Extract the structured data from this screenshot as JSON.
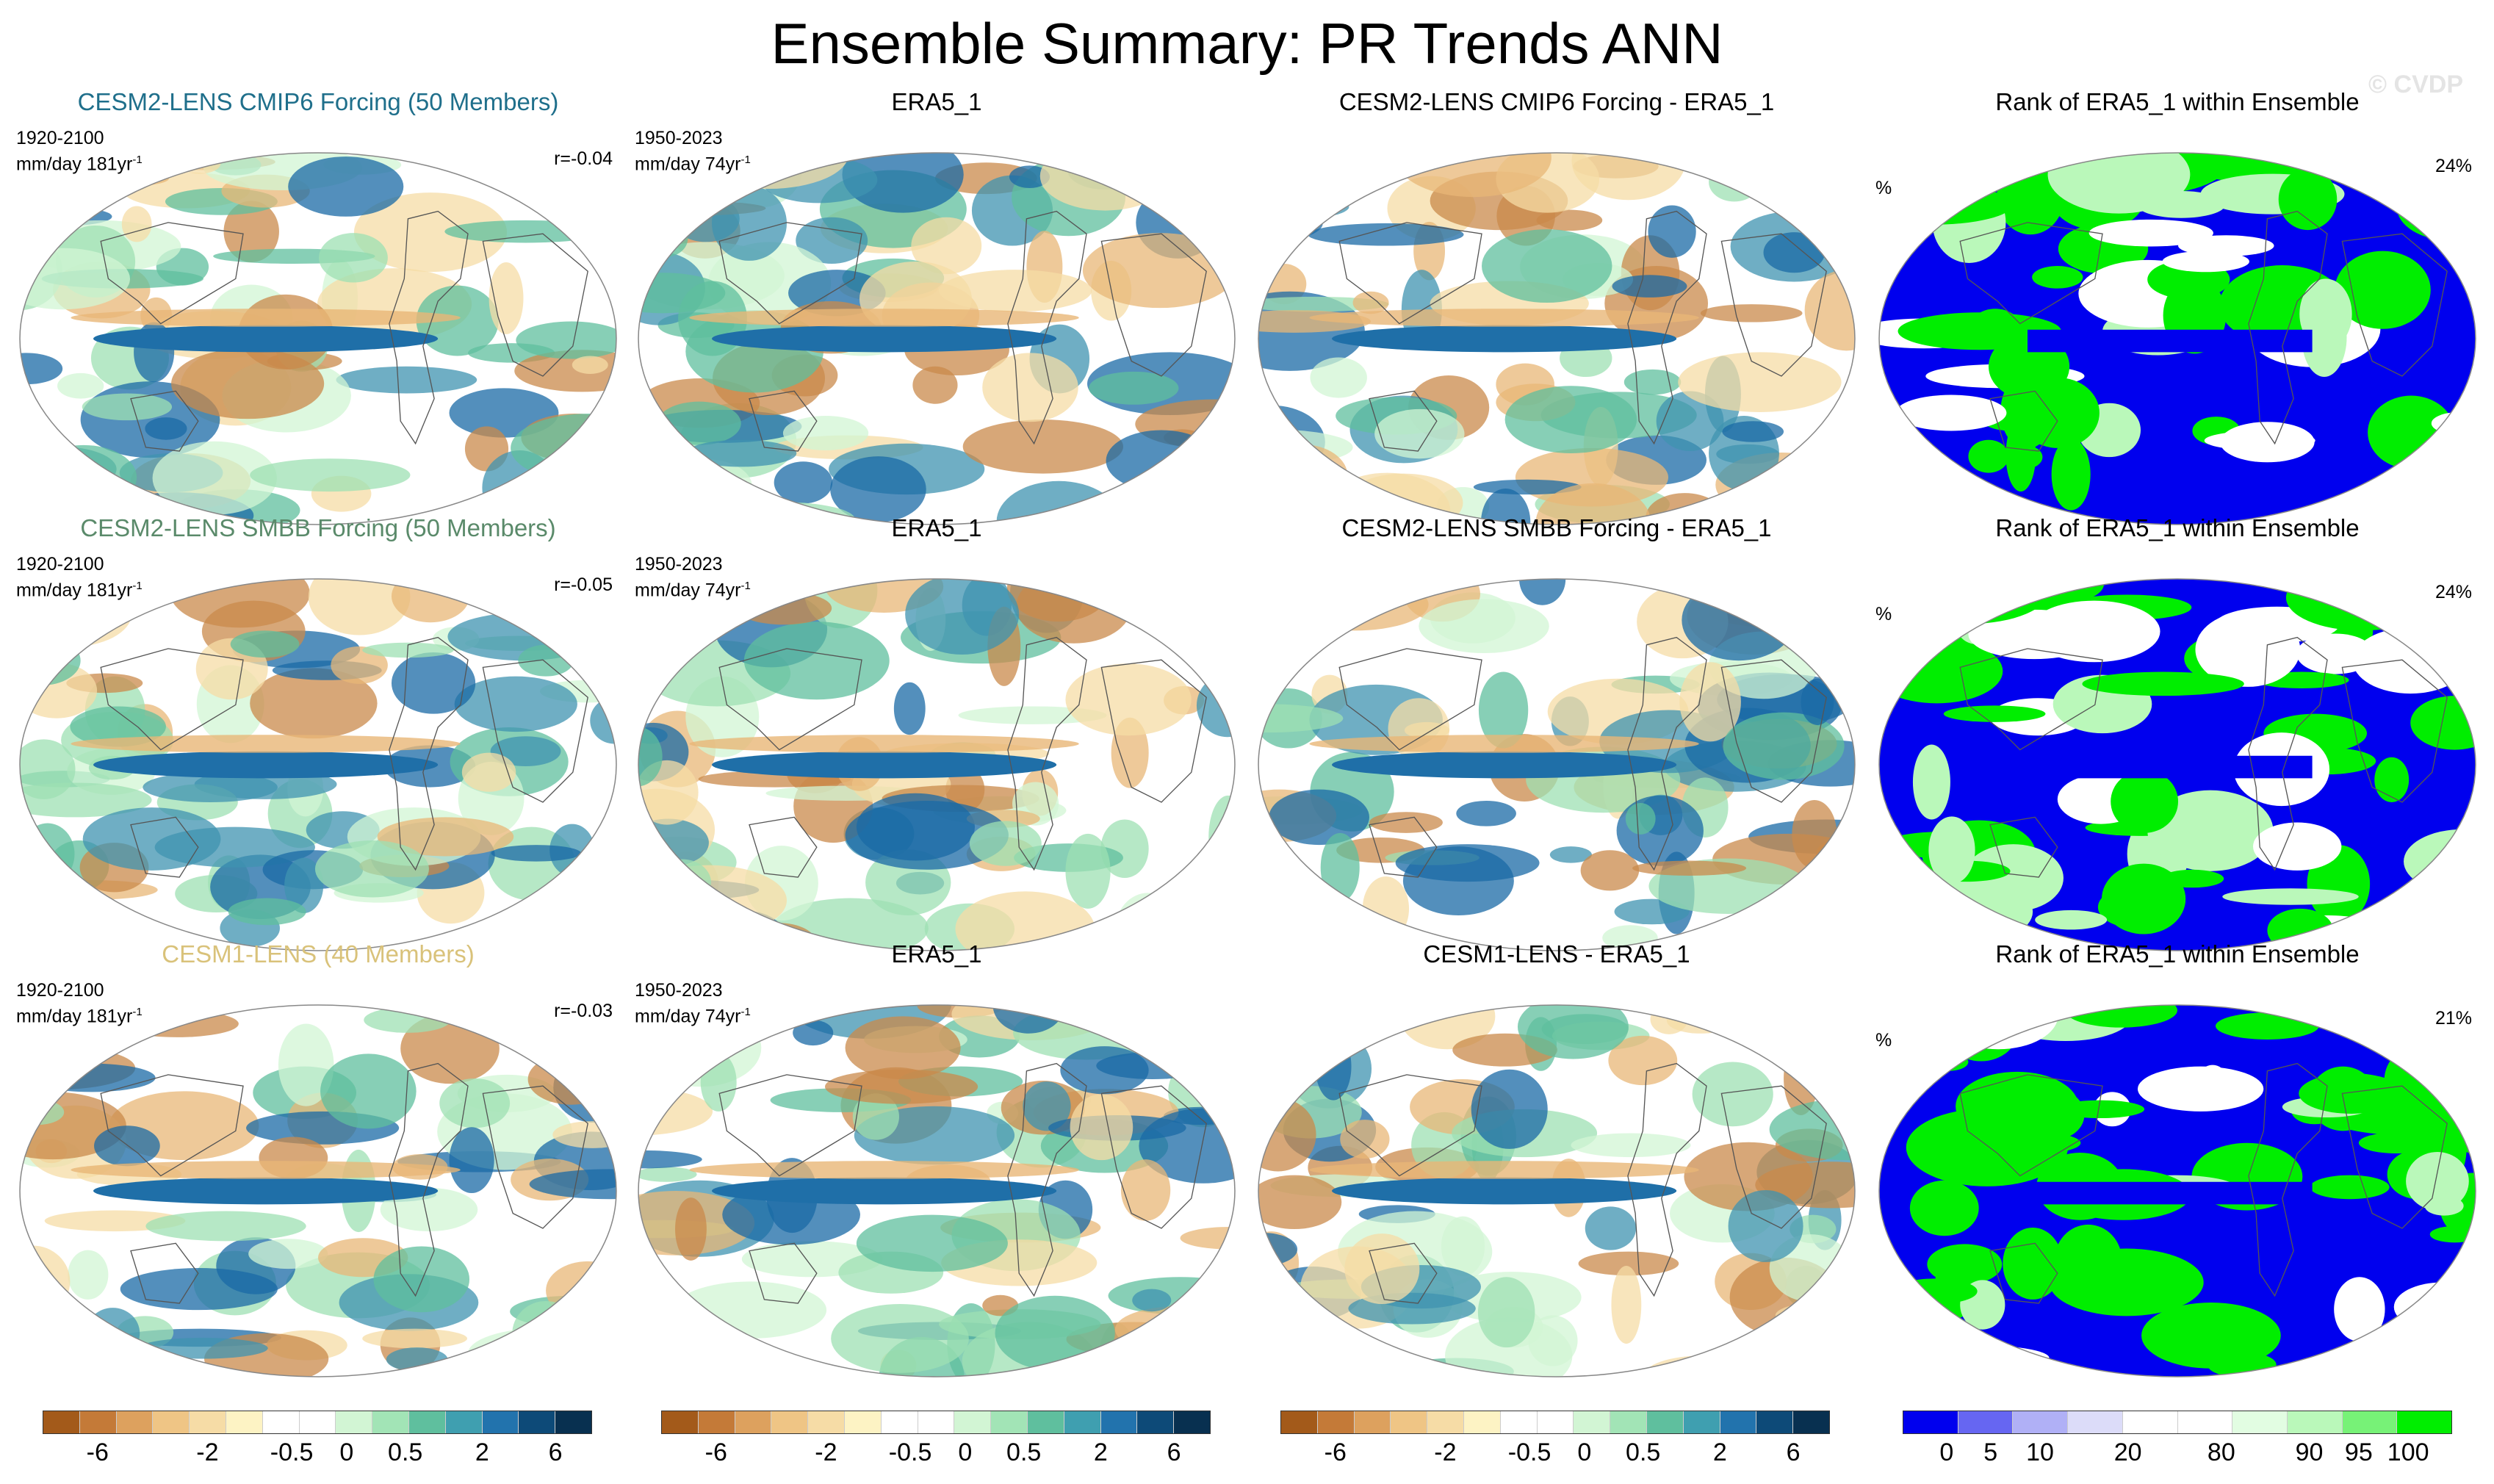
{
  "title": "Ensemble Summary: PR Trends ANN",
  "watermark": "© CVDP",
  "rows": [
    {
      "ens": {
        "label": "CESM2-LENS CMIP6 Forcing (50 Members)",
        "color": "#1f6f8b",
        "years": "1920-2100",
        "units": "mm/day 181yr",
        "r": "r=-0.04"
      },
      "obs": {
        "label": "ERA5_1",
        "years": "1950-2023",
        "units": "mm/day 74yr"
      },
      "diff": {
        "label": "CESM2-LENS CMIP6 Forcing - ERA5_1"
      },
      "rank": {
        "label": "Rank of ERA5_1 within Ensemble",
        "unit": "%",
        "pct": "24%"
      }
    },
    {
      "ens": {
        "label": "CESM2-LENS SMBB Forcing (50 Members)",
        "color": "#5a8a6a",
        "years": "1920-2100",
        "units": "mm/day 181yr",
        "r": "r=-0.05"
      },
      "obs": {
        "label": "ERA5_1",
        "years": "1950-2023",
        "units": "mm/day 74yr"
      },
      "diff": {
        "label": "CESM2-LENS SMBB Forcing - ERA5_1"
      },
      "rank": {
        "label": "Rank of ERA5_1 within Ensemble",
        "unit": "%",
        "pct": "24%"
      }
    },
    {
      "ens": {
        "label": "CESM1-LENS (40 Members)",
        "color": "#d9c27a",
        "years": "1920-2100",
        "units": "mm/day 181yr",
        "r": "r=-0.03"
      },
      "obs": {
        "label": "ERA5_1",
        "years": "1950-2023",
        "units": "mm/day 74yr"
      },
      "diff": {
        "label": "CESM1-LENS - ERA5_1"
      },
      "rank": {
        "label": "Rank of ERA5_1 within Ensemble",
        "unit": "%",
        "pct": "21%"
      }
    }
  ],
  "superscript": "-1",
  "trend_colorbar": {
    "colors": [
      "#a35a1a",
      "#c47a38",
      "#dda15e",
      "#efc585",
      "#f6dca6",
      "#fdf3c4",
      "#ffffff",
      "#ffffff",
      "#d2f5d4",
      "#a2e4b6",
      "#5fbf9e",
      "#3f9fb0",
      "#2273ad",
      "#0d4a78",
      "#083050"
    ],
    "labels": [
      "-6",
      "-2",
      "-0.5",
      "0",
      "0.5",
      "2",
      "6"
    ]
  },
  "rank_colorbar": {
    "colors": [
      "#0000ee",
      "#6666f2",
      "#b0b0f6",
      "#dcdcf9",
      "#ffffff",
      "#ffffff",
      "#e2fde2",
      "#baf8ba",
      "#77f277",
      "#00ee00"
    ],
    "labels": [
      "0",
      "5",
      "10",
      "20",
      "80",
      "90",
      "95",
      "100"
    ]
  }
}
